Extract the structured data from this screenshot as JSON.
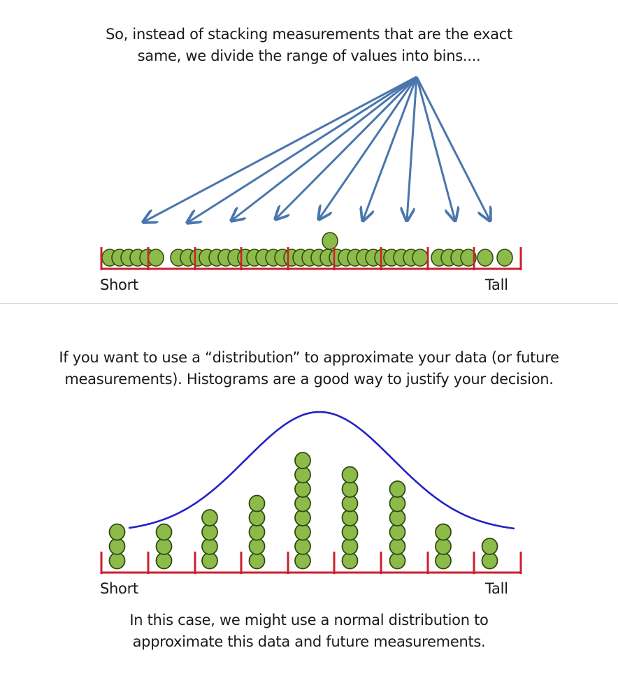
{
  "top": {
    "caption_line1": "So, instead of stacking measurements that are the exact",
    "caption_line2": "same, we divide the range of values into bins....",
    "axis_left": "Short",
    "axis_right": "Tall"
  },
  "bottom": {
    "caption_line1": "If you want to use a “distribution” to approximate your data (or future",
    "caption_line2": "measurements). Histograms are a good way to justify your decision.",
    "axis_left": "Short",
    "axis_right": "Tall",
    "footer_line1": "In this case, we might use a normal distribution to",
    "footer_line2": "approximate this data and future measurements."
  },
  "histogram": {
    "bin_counts": [
      3,
      3,
      4,
      5,
      8,
      7,
      6,
      3,
      2
    ]
  },
  "colors": {
    "arrow": "#4a76ad",
    "axis": "#cc1f2e",
    "dot_fill": "#8dbb4a",
    "dot_stroke": "#2f4a12",
    "curve": "#2222c8",
    "text": "#1a1a1a"
  }
}
